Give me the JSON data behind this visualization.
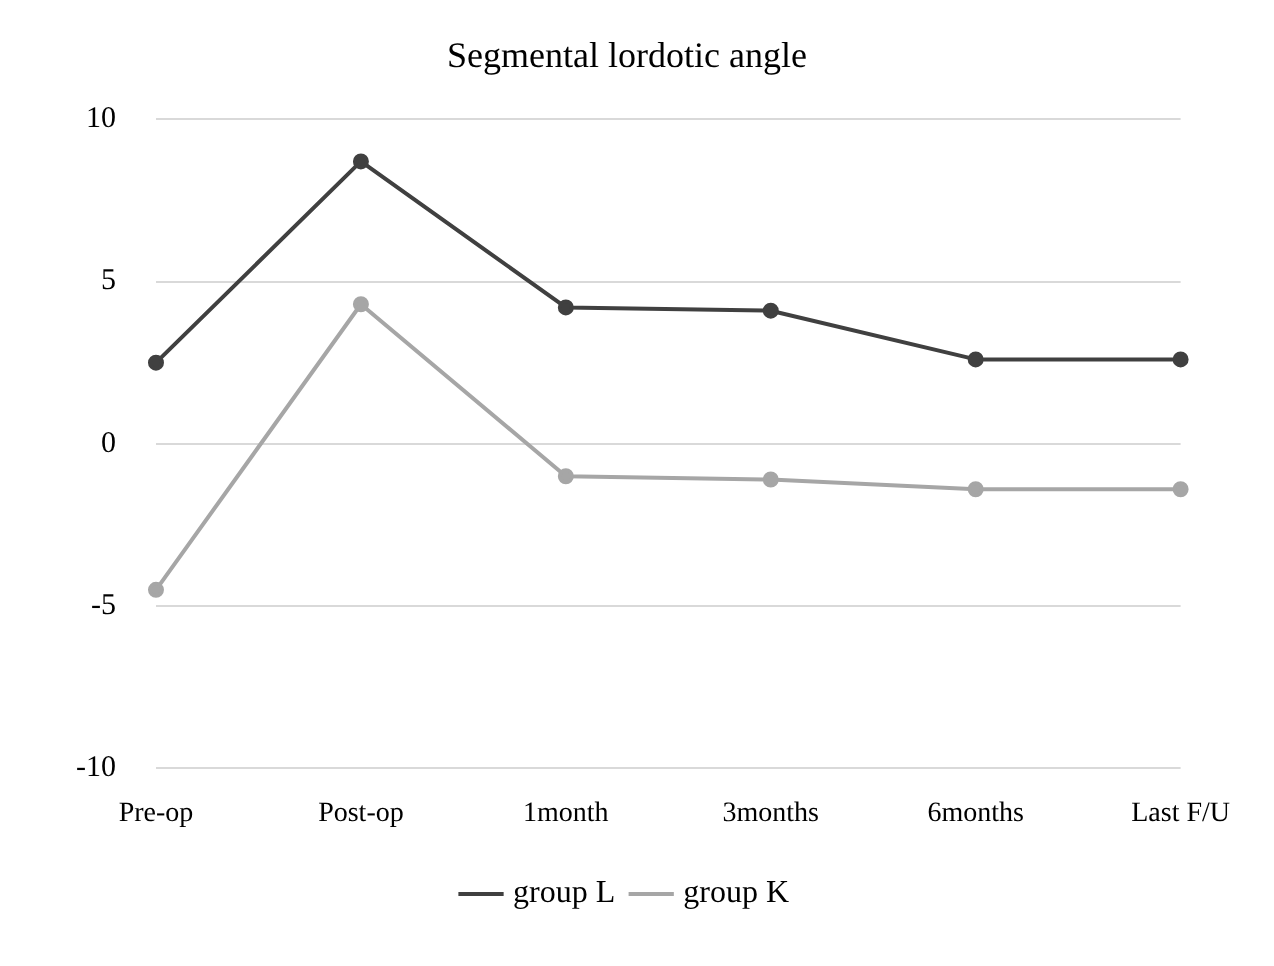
{
  "chart_data": {
    "type": "line",
    "title": "Segmental lordotic angle",
    "categories": [
      "Pre-op",
      "Post-op",
      "1month",
      "3months",
      "6months",
      "Last F/U"
    ],
    "series": [
      {
        "name": "group L",
        "color": "#404040",
        "values": [
          2.5,
          8.7,
          4.2,
          4.1,
          2.6,
          2.6
        ]
      },
      {
        "name": "group K",
        "color": "#a6a6a6",
        "values": [
          -4.5,
          4.3,
          -1.0,
          -1.1,
          -1.4,
          -1.4
        ]
      }
    ],
    "ylim": [
      -10,
      10
    ],
    "yticks": [
      -10,
      -5,
      0,
      5,
      10
    ],
    "grid": "y",
    "legend": "bottom",
    "marker": "circle",
    "line_style": "solid"
  }
}
